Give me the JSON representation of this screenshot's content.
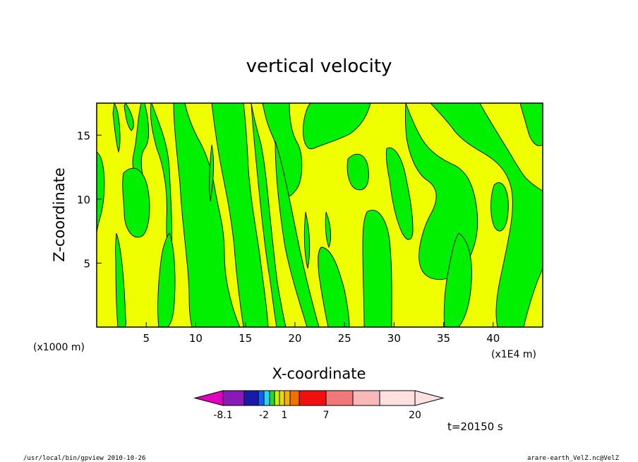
{
  "chart_data": {
    "type": "heatmap",
    "title": "vertical velocity",
    "xlabel": "X-coordinate",
    "ylabel": "Z-coordinate",
    "x_unit_left": "(x1000 m)",
    "x_unit_right": "(x1E4 m)",
    "x_range": [
      0,
      45
    ],
    "y_range": [
      0,
      17.5
    ],
    "x_ticks": [
      5,
      10,
      15,
      20,
      25,
      30,
      35,
      40
    ],
    "y_ticks": [
      5,
      10,
      15
    ],
    "time_label": "t=20150 s",
    "colorbar": {
      "labels": [
        {
          "text": "-8.1",
          "value": -8.1
        },
        {
          "text": "-2",
          "value": -2
        },
        {
          "text": "1",
          "value": 1
        },
        {
          "text": "7",
          "value": 7
        },
        {
          "text": "20",
          "value": 20
        }
      ],
      "colors": [
        "#e000c0",
        "#8a1ab8",
        "#1a1aa8",
        "#1060f0",
        "#20d8f0",
        "#28d828",
        "#c8f000",
        "#f0d800",
        "#f8b000",
        "#f07000",
        "#f01010",
        "#f07878",
        "#f8b8b8",
        "#ffe0e0"
      ],
      "field_colors": {
        "positive": "#f0ff00",
        "negative": "#00f000"
      }
    }
  },
  "footer": {
    "left": "/usr/local/bin/gpview   2010-10-26",
    "right": "arare-earth_VelZ.nc@VelZ"
  }
}
